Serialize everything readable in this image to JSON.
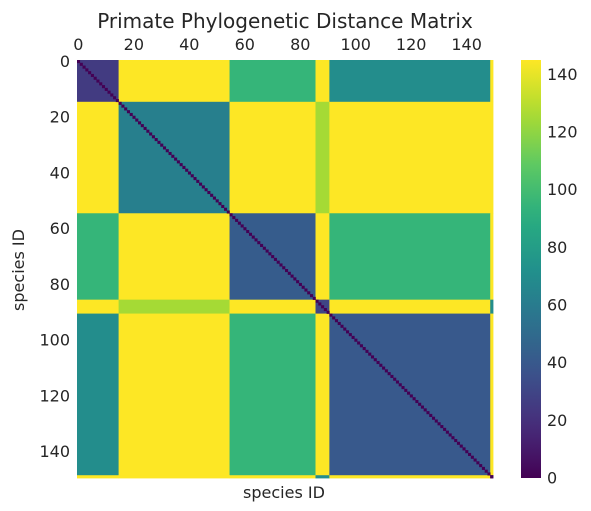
{
  "chart_data": {
    "type": "heatmap",
    "title": "Primate Phylogenetic Distance Matrix",
    "xlabel": "species ID",
    "ylabel": "species ID",
    "matrix_size": 150,
    "xlim": [
      0,
      150
    ],
    "ylim": [
      150,
      0
    ],
    "x_axis_position": "top",
    "x_ticks": [
      0,
      20,
      40,
      60,
      80,
      100,
      120,
      140
    ],
    "y_ticks": [
      0,
      20,
      40,
      60,
      80,
      100,
      120,
      140
    ],
    "colormap": "viridis",
    "color_range": [
      0,
      145
    ],
    "colorbar_ticks": [
      0,
      20,
      40,
      60,
      80,
      100,
      120,
      140
    ],
    "colorbar_position": "right",
    "grid": false,
    "clusters": [
      {
        "start": 0,
        "end": 15,
        "within_distance": 25
      },
      {
        "start": 15,
        "end": 55,
        "within_distance": 62
      },
      {
        "start": 55,
        "end": 86,
        "within_distance": 42
      },
      {
        "start": 86,
        "end": 91,
        "within_distance": 30
      },
      {
        "start": 91,
        "end": 149,
        "within_distance": 40
      },
      {
        "start": 149,
        "end": 150,
        "within_distance": 0
      }
    ],
    "between_cluster_distance": [
      [
        0,
        145,
        95,
        145,
        70,
        145
      ],
      [
        145,
        0,
        145,
        125,
        145,
        145
      ],
      [
        95,
        145,
        0,
        145,
        95,
        145
      ],
      [
        145,
        125,
        145,
        0,
        145,
        70
      ],
      [
        70,
        145,
        95,
        145,
        0,
        145
      ],
      [
        145,
        145,
        145,
        70,
        145,
        0
      ]
    ],
    "diagonal_value": 0
  }
}
